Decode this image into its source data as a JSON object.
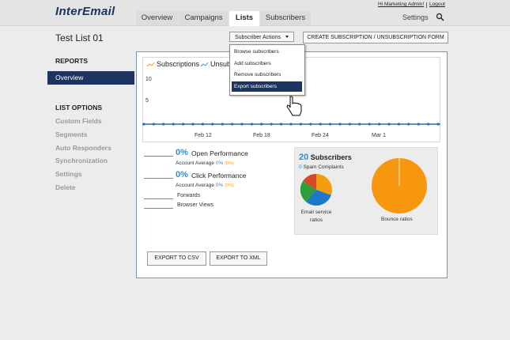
{
  "header": {
    "logo": "InterEmail",
    "tabs": [
      "Overview",
      "Campaigns",
      "Lists",
      "Subscribers"
    ],
    "user_links": [
      "Hi Marketing Admin!",
      "Logout"
    ],
    "settings": "Settings"
  },
  "page": {
    "title": "Test List 01",
    "actions_button": "Subscriber Actions",
    "form_button": "CREATE SUBSCRIPTION / UNSUBSCRIPTION FORM"
  },
  "menu": [
    "Browse subscribers",
    "Add subscribers",
    "Remove subscribers",
    "Export subscribers"
  ],
  "sidebar": {
    "reports_heading": "REPORTS",
    "reports": [
      "Overview"
    ],
    "options_heading": "LIST OPTIONS",
    "options": [
      "Custom Fields",
      "Segments",
      "Auto Responders",
      "Synchronization",
      "Settings",
      "Delete"
    ]
  },
  "chart": {
    "legend": [
      "Subscriptions",
      "Unsubscriptions"
    ],
    "y_labels": [
      "10",
      "5"
    ],
    "x_labels": [
      "Feb 12",
      "Feb 18",
      "Feb 24",
      "Mar 1"
    ]
  },
  "stats": {
    "open": {
      "value": "0%",
      "label": "Open Performance",
      "average_label": "Account Average",
      "average": "0%",
      "average_paren": "(0%)"
    },
    "click": {
      "value": "0%",
      "label": "Click Performance",
      "average_label": "Account Average",
      "average": "0%",
      "average_paren": "(0%)"
    },
    "forwards": "Forwards",
    "browser_views": "Browser Views"
  },
  "summary": {
    "count": "20",
    "count_label": "Subscribers",
    "spam_count": "0",
    "spam_label": "Spam Complaints",
    "email_ratio_label": "Email service ratios",
    "bounce_label": "Bounce ratios"
  },
  "buttons": [
    "EXPORT TO CSV",
    "EXPORT TO XML"
  ]
}
